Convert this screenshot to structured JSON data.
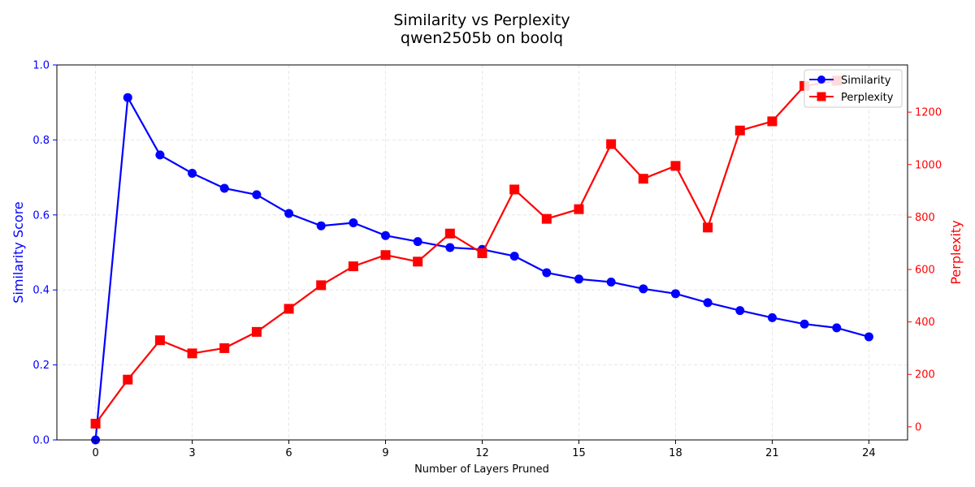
{
  "chart_data": {
    "type": "line",
    "title": "Similarity vs Perplexity",
    "subtitle": "qwen2505b on boolq",
    "xlabel": "Number of Layers Pruned",
    "ylabel_left": "Similarity Score",
    "ylabel_right": "Perplexity",
    "xlim": [
      -1.2,
      25.2
    ],
    "ylim_left": [
      0,
      1
    ],
    "ylim_right": [
      -50,
      1380
    ],
    "x_ticks": [
      0,
      3,
      6,
      9,
      12,
      15,
      18,
      21,
      24
    ],
    "y_ticks_left": [
      0.0,
      0.2,
      0.4,
      0.6,
      0.8,
      1.0
    ],
    "y_ticks_right": [
      0,
      200,
      400,
      600,
      800,
      1000,
      1200
    ],
    "grid": true,
    "legend_position": "top-right",
    "series": [
      {
        "name": "Similarity",
        "axis": "left",
        "color": "#0000ff",
        "marker": "circle",
        "x": [
          0,
          1,
          2,
          3,
          4,
          5,
          6,
          7,
          8,
          9,
          10,
          11,
          12,
          13,
          14,
          15,
          16,
          17,
          18,
          19,
          20,
          21,
          22,
          23,
          24
        ],
        "values": [
          0.0,
          0.913,
          0.76,
          0.711,
          0.671,
          0.654,
          0.604,
          0.571,
          0.579,
          0.545,
          0.529,
          0.513,
          0.508,
          0.49,
          0.446,
          0.429,
          0.421,
          0.403,
          0.39,
          0.366,
          0.345,
          0.326,
          0.309,
          0.299,
          0.275
        ]
      },
      {
        "name": "Perplexity",
        "axis": "right",
        "color": "#ff0000",
        "marker": "square",
        "x": [
          0,
          1,
          2,
          3,
          4,
          5,
          6,
          7,
          8,
          9,
          10,
          11,
          12,
          13,
          14,
          15,
          16,
          17,
          18,
          19,
          20,
          21,
          22,
          23
        ],
        "values": [
          12,
          180,
          330,
          280,
          300,
          362,
          450,
          540,
          612,
          655,
          630,
          737,
          662,
          905,
          793,
          830,
          1078,
          946,
          995,
          760,
          1130,
          1165,
          1300,
          1320
        ]
      }
    ]
  }
}
